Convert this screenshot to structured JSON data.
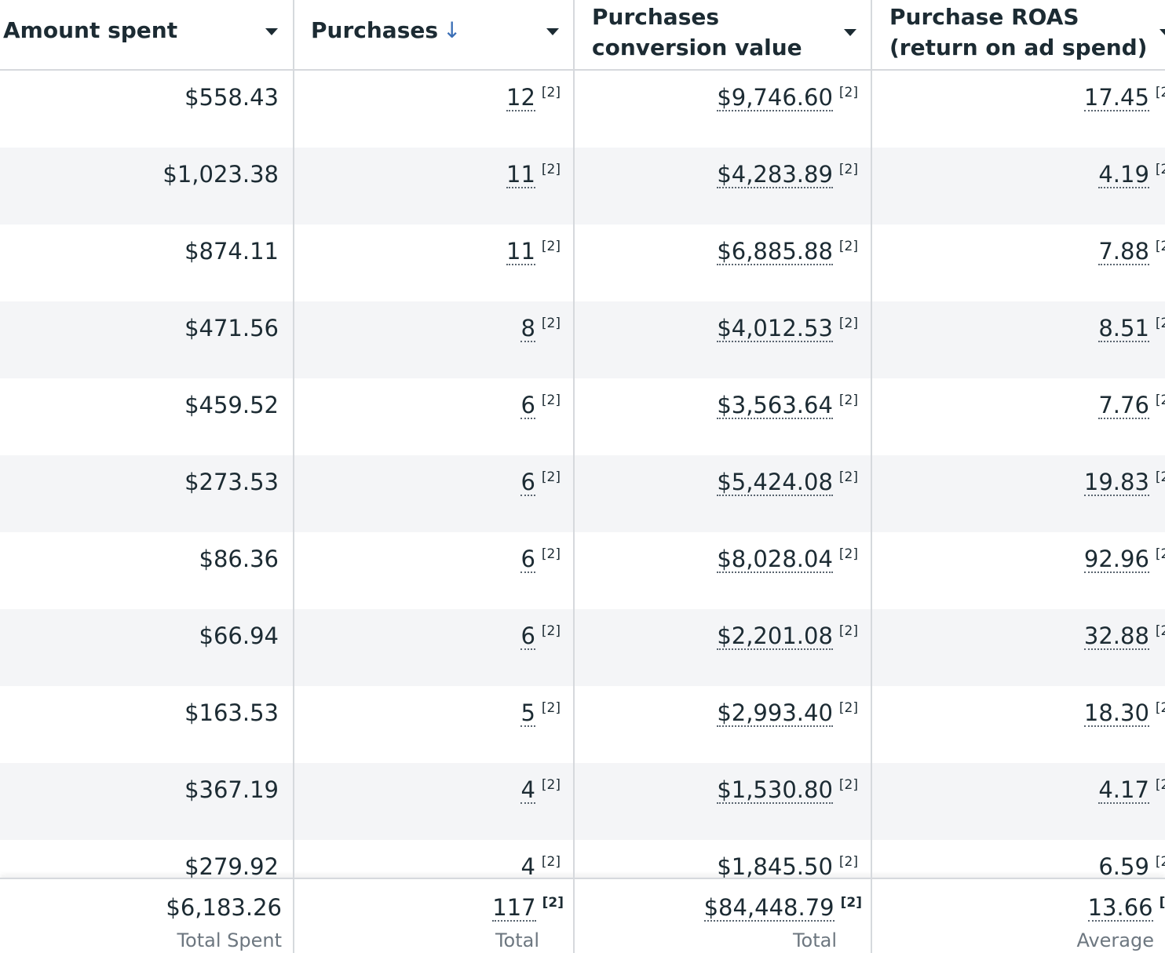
{
  "columns": {
    "amount_spent": {
      "label": "Amount spent"
    },
    "purchases": {
      "label": "Purchases",
      "sort_indicator": "↓"
    },
    "conversion_value": {
      "line1": "Purchases",
      "line2": "conversion value"
    },
    "roas": {
      "line1": "Purchase ROAS",
      "line2": "(return on ad spend)"
    }
  },
  "footnote": "[2]",
  "rows": [
    {
      "amount_spent": "$558.43",
      "purchases": "12",
      "conversion_value": "$9,746.60",
      "roas": "17.45"
    },
    {
      "amount_spent": "$1,023.38",
      "purchases": "11",
      "conversion_value": "$4,283.89",
      "roas": "4.19"
    },
    {
      "amount_spent": "$874.11",
      "purchases": "11",
      "conversion_value": "$6,885.88",
      "roas": "7.88"
    },
    {
      "amount_spent": "$471.56",
      "purchases": "8",
      "conversion_value": "$4,012.53",
      "roas": "8.51"
    },
    {
      "amount_spent": "$459.52",
      "purchases": "6",
      "conversion_value": "$3,563.64",
      "roas": "7.76"
    },
    {
      "amount_spent": "$273.53",
      "purchases": "6",
      "conversion_value": "$5,424.08",
      "roas": "19.83"
    },
    {
      "amount_spent": "$86.36",
      "purchases": "6",
      "conversion_value": "$8,028.04",
      "roas": "92.96"
    },
    {
      "amount_spent": "$66.94",
      "purchases": "6",
      "conversion_value": "$2,201.08",
      "roas": "32.88"
    },
    {
      "amount_spent": "$163.53",
      "purchases": "5",
      "conversion_value": "$2,993.40",
      "roas": "18.30"
    },
    {
      "amount_spent": "$367.19",
      "purchases": "4",
      "conversion_value": "$1,530.80",
      "roas": "4.17"
    },
    {
      "amount_spent": "$279.92",
      "purchases": "4",
      "conversion_value": "$1,845.50",
      "roas": "6.59"
    }
  ],
  "totals": {
    "amount_spent": {
      "value": "$6,183.26",
      "label": "Total Spent"
    },
    "purchases": {
      "value": "117",
      "label": "Total"
    },
    "conversion_value": {
      "value": "$84,448.79",
      "label": "Total"
    },
    "roas": {
      "value": "13.66",
      "label": "Average"
    }
  },
  "colors": {
    "text": "#1c2b33",
    "alt_row": "#f4f5f7",
    "border": "#d6d9dd",
    "sort_arrow": "#3b6fb6",
    "muted": "#6d7780"
  }
}
